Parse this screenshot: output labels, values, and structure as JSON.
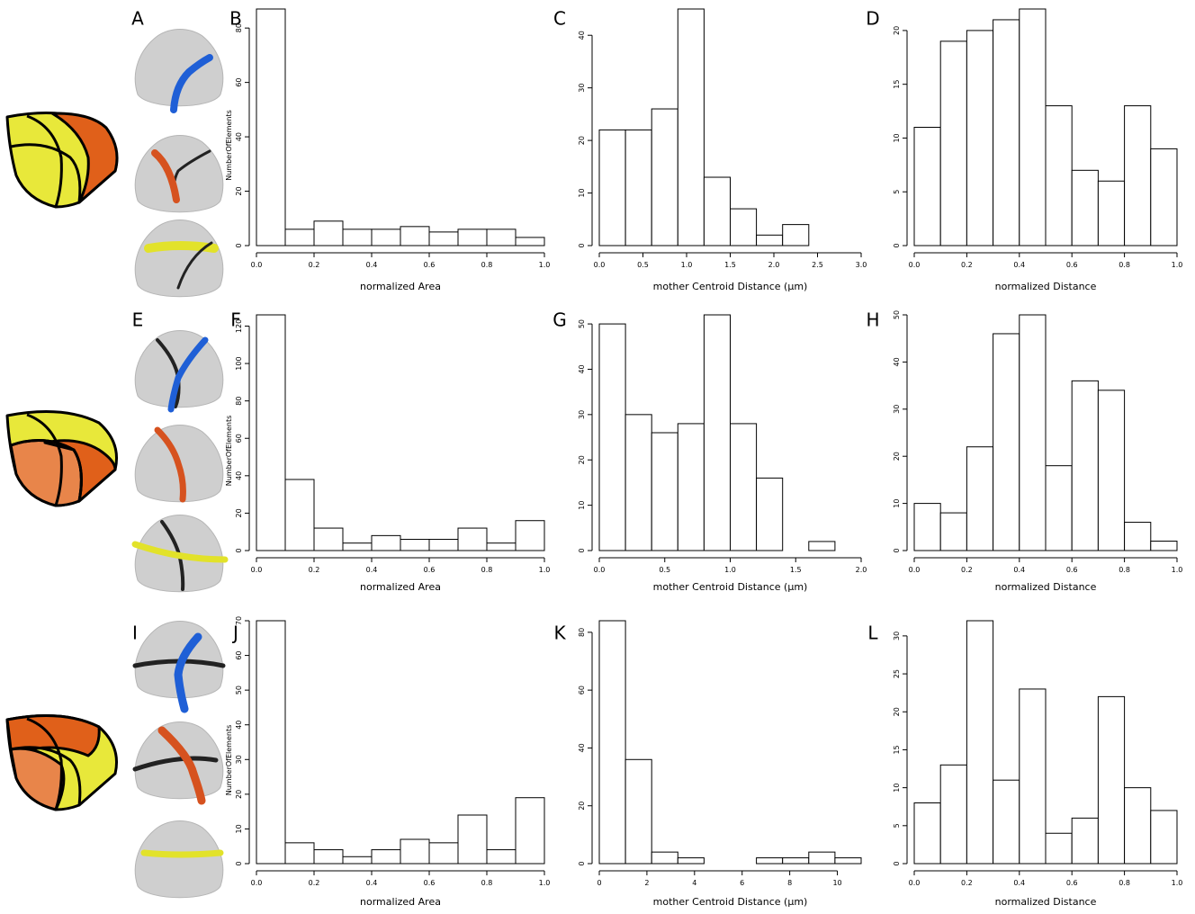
{
  "panel_labels": [
    "A",
    "B",
    "C",
    "D",
    "E",
    "F",
    "G",
    "H",
    "I",
    "J",
    "K",
    "L"
  ],
  "chart_data": [
    {
      "type": "histogram",
      "color": "#ffffff",
      "xlabel": "normalized Area",
      "ylabel": "NumberOfElements",
      "bins": [
        0,
        0.1,
        0.2,
        0.3,
        0.4,
        0.5,
        0.6,
        0.7,
        0.8,
        0.9,
        1.0
      ],
      "values": [
        87,
        6,
        9,
        6,
        6,
        7,
        5,
        6,
        6,
        3
      ],
      "xlim": [
        0,
        1
      ],
      "ylim": [
        0,
        87
      ],
      "xticks": [
        {
          "value": 0,
          "label": "0.0"
        },
        {
          "value": 0.2,
          "label": "0.2"
        },
        {
          "value": 0.4,
          "label": "0.4"
        },
        {
          "value": 0.6,
          "label": "0.6"
        },
        {
          "value": 0.8,
          "label": "0.8"
        },
        {
          "value": 1,
          "label": "1.0"
        }
      ],
      "yticks": [
        0,
        20,
        40,
        60,
        80
      ]
    },
    {
      "type": "histogram",
      "color": "#ffffff",
      "xlabel": "mother Centroid Distance (µm)",
      "bins": [
        0,
        0.3,
        0.6,
        0.9,
        1.2,
        1.5,
        1.8,
        2.1,
        2.4
      ],
      "values": [
        22,
        22,
        26,
        45,
        13,
        7,
        2,
        4
      ],
      "xlim": [
        0,
        3
      ],
      "ylim": [
        0,
        45
      ],
      "xticks": [
        {
          "value": 0,
          "label": "0.0"
        },
        {
          "value": 0.5,
          "label": "0.5"
        },
        {
          "value": 1,
          "label": "1.0"
        },
        {
          "value": 1.5,
          "label": "1.5"
        },
        {
          "value": 2,
          "label": "2.0"
        },
        {
          "value": 2.5,
          "label": "2.5"
        },
        {
          "value": 3,
          "label": "3.0"
        }
      ],
      "yticks": [
        0,
        10,
        20,
        30,
        40
      ]
    },
    {
      "type": "histogram",
      "color": "#ffffff",
      "xlabel": "normalized Distance",
      "bins": [
        0,
        0.1,
        0.2,
        0.3,
        0.4,
        0.5,
        0.6,
        0.7,
        0.8,
        0.9,
        1.0
      ],
      "values": [
        11,
        19,
        20,
        21,
        22,
        13,
        7,
        6,
        13,
        9
      ],
      "xlim": [
        0,
        1
      ],
      "ylim": [
        0,
        22
      ],
      "xticks": [
        {
          "value": 0,
          "label": "0.0"
        },
        {
          "value": 0.2,
          "label": "0.2"
        },
        {
          "value": 0.4,
          "label": "0.4"
        },
        {
          "value": 0.6,
          "label": "0.6"
        },
        {
          "value": 0.8,
          "label": "0.8"
        },
        {
          "value": 1,
          "label": "1.0"
        }
      ],
      "yticks": [
        0,
        5,
        10,
        15,
        20
      ]
    },
    {
      "type": "histogram",
      "color": "#ffffff",
      "xlabel": "normalized Area",
      "ylabel": "NumberOfElements",
      "bins": [
        0,
        0.1,
        0.2,
        0.3,
        0.4,
        0.5,
        0.6,
        0.7,
        0.8,
        0.9,
        1.0
      ],
      "values": [
        126,
        38,
        12,
        4,
        8,
        6,
        6,
        12,
        4,
        16
      ],
      "xlim": [
        0,
        1
      ],
      "ylim": [
        0,
        126
      ],
      "xticks": [
        {
          "value": 0,
          "label": "0.0"
        },
        {
          "value": 0.2,
          "label": "0.2"
        },
        {
          "value": 0.4,
          "label": "0.4"
        },
        {
          "value": 0.6,
          "label": "0.6"
        },
        {
          "value": 0.8,
          "label": "0.8"
        },
        {
          "value": 1,
          "label": "1.0"
        }
      ],
      "yticks": [
        0,
        20,
        40,
        60,
        80,
        100,
        120
      ]
    },
    {
      "type": "histogram",
      "color": "#ffffff",
      "xlabel": "mother Centroid Distance (µm)",
      "bins": [
        0,
        0.2,
        0.4,
        0.6,
        0.8,
        1.0,
        1.2,
        1.4,
        1.6,
        1.8
      ],
      "values": [
        50,
        30,
        26,
        28,
        52,
        28,
        16,
        0,
        2
      ],
      "xlim": [
        0,
        2
      ],
      "ylim": [
        0,
        52
      ],
      "xticks": [
        {
          "value": 0,
          "label": "0.0"
        },
        {
          "value": 0.5,
          "label": "0.5"
        },
        {
          "value": 1,
          "label": "1.0"
        },
        {
          "value": 1.5,
          "label": "1.5"
        },
        {
          "value": 2,
          "label": "2.0"
        }
      ],
      "yticks": [
        0,
        10,
        20,
        30,
        40,
        50
      ]
    },
    {
      "type": "histogram",
      "color": "#ffffff",
      "xlabel": "normalized Distance",
      "bins": [
        0,
        0.1,
        0.2,
        0.3,
        0.4,
        0.5,
        0.6,
        0.7,
        0.8,
        0.9,
        1.0
      ],
      "values": [
        10,
        8,
        22,
        46,
        50,
        18,
        36,
        34,
        6,
        2
      ],
      "xlim": [
        0,
        1
      ],
      "ylim": [
        0,
        50
      ],
      "xticks": [
        {
          "value": 0,
          "label": "0.0"
        },
        {
          "value": 0.2,
          "label": "0.2"
        },
        {
          "value": 0.4,
          "label": "0.4"
        },
        {
          "value": 0.6,
          "label": "0.6"
        },
        {
          "value": 0.8,
          "label": "0.8"
        },
        {
          "value": 1,
          "label": "1.0"
        }
      ],
      "yticks": [
        0,
        10,
        20,
        30,
        40,
        50
      ]
    },
    {
      "type": "histogram",
      "color": "#ffffff",
      "xlabel": "normalized Area",
      "ylabel": "NumberOfElements",
      "bins": [
        0,
        0.1,
        0.2,
        0.3,
        0.4,
        0.5,
        0.6,
        0.7,
        0.8,
        0.9,
        1.0
      ],
      "values": [
        70,
        6,
        4,
        2,
        4,
        7,
        6,
        14,
        4,
        19
      ],
      "xlim": [
        0,
        1
      ],
      "ylim": [
        0,
        70
      ],
      "xticks": [
        {
          "value": 0,
          "label": "0.0"
        },
        {
          "value": 0.2,
          "label": "0.2"
        },
        {
          "value": 0.4,
          "label": "0.4"
        },
        {
          "value": 0.6,
          "label": "0.6"
        },
        {
          "value": 0.8,
          "label": "0.8"
        },
        {
          "value": 1,
          "label": "1.0"
        }
      ],
      "yticks": [
        0,
        10,
        20,
        30,
        40,
        50,
        60,
        70
      ]
    },
    {
      "type": "histogram",
      "color": "#ffffff",
      "xlabel": "mother Centroid Distance (µm)",
      "bins": [
        0,
        1.1,
        2.2,
        3.3,
        4.4,
        5.5,
        6.6,
        7.7,
        8.8,
        9.9,
        11
      ],
      "values": [
        84,
        36,
        4,
        2,
        0,
        0,
        2,
        2,
        4,
        2
      ],
      "xlim": [
        0,
        11
      ],
      "ylim": [
        0,
        84
      ],
      "xticks": [
        0,
        2,
        4,
        6,
        8,
        10
      ],
      "yticks": [
        0,
        20,
        40,
        60,
        80
      ]
    },
    {
      "type": "histogram",
      "color": "#ffffff",
      "xlabel": "normalized Distance",
      "bins": [
        0,
        0.1,
        0.2,
        0.3,
        0.4,
        0.5,
        0.6,
        0.7,
        0.8,
        0.9,
        1.0
      ],
      "values": [
        8,
        13,
        32,
        11,
        23,
        4,
        6,
        22,
        10,
        7
      ],
      "xlim": [
        0,
        1
      ],
      "ylim": [
        0,
        32
      ],
      "xticks": [
        {
          "value": 0,
          "label": "0.0"
        },
        {
          "value": 0.2,
          "label": "0.2"
        },
        {
          "value": 0.4,
          "label": "0.4"
        },
        {
          "value": 0.6,
          "label": "0.6"
        },
        {
          "value": 0.8,
          "label": "0.8"
        },
        {
          "value": 1,
          "label": "1.0"
        }
      ],
      "yticks": [
        0,
        5,
        10,
        15,
        20,
        25,
        30
      ]
    }
  ]
}
